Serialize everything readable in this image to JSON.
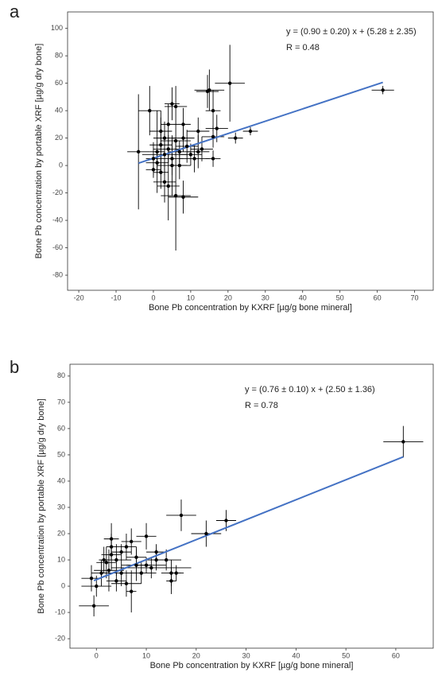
{
  "chart_data": [
    {
      "type": "scatter",
      "label": "a",
      "x_label": "Bone Pb concentration by KXRF [µg/g bone mineral]",
      "y_label": "Bone Pb concentration by portable XRF [µg/g dry bone]",
      "annotations": [
        "y = (0.90 ± 0.20) x + (5.28 ± 2.35)",
        "R = 0.48"
      ],
      "xlim": [
        -23,
        75
      ],
      "ylim": [
        -91,
        112
      ],
      "xticks": [
        -20,
        -10,
        0,
        10,
        20,
        30,
        40,
        50,
        60,
        70
      ],
      "yticks": [
        -80,
        -60,
        -40,
        -20,
        0,
        20,
        40,
        60,
        80,
        100
      ],
      "color": "#000000",
      "fit": {
        "color": "#4472c4",
        "x": [
          -4,
          61.5
        ],
        "y": [
          1.68,
          60.63
        ]
      },
      "points": {
        "x": [
          61.5,
          26,
          22,
          20.5,
          15,
          14.5,
          16,
          17,
          16,
          16,
          12,
          8,
          6,
          5,
          -1,
          -4,
          0,
          1,
          2,
          2,
          3,
          4,
          5,
          6,
          8,
          3,
          3,
          4,
          5,
          6,
          7,
          9,
          10,
          11,
          12,
          1,
          0,
          2,
          4,
          7,
          13,
          8
        ],
        "y": [
          55,
          25,
          20,
          60,
          55,
          54,
          40,
          27,
          21,
          5,
          25,
          30,
          43,
          45,
          40,
          10,
          5,
          10,
          15,
          -5,
          -12,
          -15,
          0,
          -22,
          -23,
          20,
          8,
          12,
          5,
          18,
          10,
          14,
          8,
          5,
          10,
          2,
          -3,
          25,
          30,
          0,
          12,
          20
        ],
        "xerr": [
          3,
          2,
          2,
          4,
          4,
          3,
          2,
          3,
          3,
          2,
          3,
          2,
          3,
          2,
          3,
          3,
          2,
          2,
          3,
          2,
          3,
          3,
          4,
          4,
          4,
          3,
          6,
          4,
          3,
          4,
          3,
          3,
          3,
          4,
          3,
          3,
          2,
          3,
          2,
          3,
          3,
          3
        ],
        "yerr": [
          3,
          3,
          4,
          28,
          15,
          12,
          15,
          10,
          8,
          6,
          10,
          12,
          15,
          12,
          18,
          42,
          12,
          30,
          20,
          12,
          15,
          25,
          22,
          40,
          12,
          12,
          15,
          10,
          12,
          10,
          8,
          12,
          8,
          10,
          12,
          8,
          6,
          15,
          15,
          10,
          9,
          10
        ]
      }
    },
    {
      "type": "scatter",
      "label": "b",
      "x_label": "Bone Pb concentration by KXRF [µg/g bone mineral]",
      "y_label": "Bone Pb concentration by portable XRF [µg/g dry bone]",
      "annotations": [
        "y = (0.76 ± 0.10) x + (2.50 ± 1.36)",
        "R = 0.78"
      ],
      "xlim": [
        -5.3,
        67.5
      ],
      "ylim": [
        -23.6,
        84.5
      ],
      "xticks": [
        0,
        10,
        20,
        30,
        40,
        50,
        60
      ],
      "yticks": [
        -20,
        -10,
        0,
        10,
        20,
        30,
        40,
        50,
        60,
        70,
        80
      ],
      "color": "#000000",
      "fit": {
        "color": "#4472c4",
        "x": [
          -0.5,
          61.5
        ],
        "y": [
          2.12,
          49.24
        ]
      },
      "points": {
        "x": [
          61.5,
          26,
          22,
          17,
          16,
          15,
          15,
          14,
          12,
          12,
          10,
          10,
          8,
          7,
          7,
          6,
          5,
          4,
          3,
          3,
          2.5,
          2,
          1,
          0,
          -0.5,
          -1,
          9,
          11,
          6,
          4,
          8,
          5,
          1.5,
          3
        ],
        "y": [
          55,
          25,
          20,
          27,
          5,
          2,
          5,
          10,
          10,
          13,
          19,
          8,
          8,
          -2,
          17,
          15,
          5,
          10,
          12,
          18,
          6,
          9,
          5,
          0,
          -7.5,
          3,
          5,
          7,
          1,
          2,
          11,
          13,
          10,
          15
        ],
        "xerr": [
          4,
          2,
          3,
          3,
          1.5,
          1,
          2,
          3,
          2,
          2,
          2,
          4,
          3,
          1,
          2,
          2,
          3,
          3,
          2,
          1.5,
          3,
          2,
          2,
          3,
          3,
          2,
          3,
          8,
          3,
          2,
          2,
          2,
          1,
          1
        ],
        "yerr": [
          6,
          4,
          5,
          6,
          3,
          5,
          5,
          4,
          4,
          3,
          5,
          3,
          6,
          8,
          5,
          5,
          5,
          6,
          6,
          6,
          8,
          6,
          5,
          4,
          4,
          5,
          4,
          4,
          5,
          4,
          4,
          3,
          5,
          5
        ]
      }
    }
  ]
}
